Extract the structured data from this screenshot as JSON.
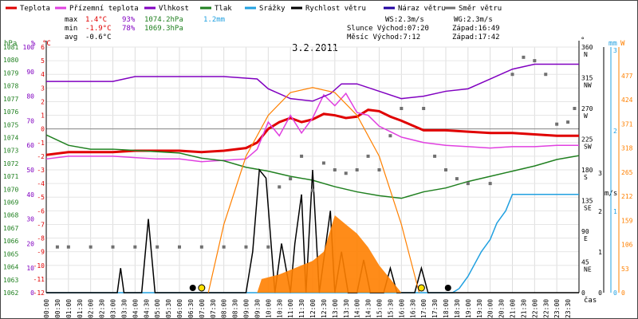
{
  "legend": [
    {
      "label": "Teplota",
      "color": "#e00000"
    },
    {
      "label": "Přízemní teplota",
      "color": "#e040e0"
    },
    {
      "label": "Vlhkost",
      "color": "#8000c0"
    },
    {
      "label": "Tlak",
      "color": "#208020"
    },
    {
      "label": "Srážky",
      "color": "#20a0e0"
    },
    {
      "label": "Rychlost větru",
      "color": "#000000"
    },
    {
      "label": "Náraz větru",
      "color": "#2000a0"
    },
    {
      "label": "Směr větru",
      "color": "#707070"
    }
  ],
  "stats": {
    "max_label": "max",
    "max_temp": "1.4°C",
    "max_hum": "93%",
    "max_press": "1074.2hPa",
    "max_rain": "1.2mm",
    "min_label": "min",
    "min_temp": "-1.9°C",
    "min_hum": "78%",
    "min_press": "1069.3hPa",
    "avg_label": "avg",
    "avg_temp": "-0.6°C"
  },
  "wind_info": {
    "ws": "WS:2.3m/s",
    "wg": "WG:2.3m/s"
  },
  "sun_info": {
    "sunrise": "Slunce Východ:07:20",
    "sunset": "Západ:16:49"
  },
  "moon_info": {
    "moonrise": "Měsíc  Východ:7:12",
    "moonset": "Západ:17:42"
  },
  "date": "3.2.2011",
  "axis_titles": {
    "hpa": "hPa",
    "pct": "%",
    "degc": "°C",
    "deg": "°",
    "mm": "mm",
    "ms": "m/s",
    "w": "W",
    "cas": "čas"
  },
  "chart_data": {
    "type": "line",
    "title": "3.2.2011",
    "x_unit": "hour of day",
    "xlim": [
      0,
      24
    ],
    "x_ticks": [
      "00:00",
      "00:30",
      "01:00",
      "01:30",
      "02:00",
      "02:30",
      "03:00",
      "03:30",
      "04:00",
      "04:30",
      "05:00",
      "05:30",
      "06:00",
      "06:30",
      "07:00",
      "07:30",
      "08:00",
      "08:30",
      "09:00",
      "09:30",
      "10:00",
      "10:30",
      "11:00",
      "11:30",
      "12:00",
      "12:30",
      "13:00",
      "13:30",
      "14:00",
      "14:30",
      "15:00",
      "15:30",
      "16:00",
      "16:30",
      "17:00",
      "17:30",
      "18:00",
      "18:30",
      "19:00",
      "19:30",
      "20:00",
      "20:30",
      "21:00",
      "21:30",
      "22:00",
      "22:30",
      "23:00",
      "23:30"
    ],
    "axes": {
      "pressure_hpa": {
        "ticks": [
          "1062",
          "1063",
          "1064",
          "1065",
          "1066",
          "1067",
          "1068",
          "1069",
          "1070",
          "1071",
          "1072",
          "1073",
          "1074",
          "1075",
          "1076",
          "1077",
          "1078",
          "1079",
          "1080",
          "1081"
        ],
        "range": [
          1062,
          1081
        ]
      },
      "humidity_pct": {
        "ticks": [
          "0",
          "10",
          "20",
          "30",
          "40",
          "50",
          "60",
          "70",
          "80",
          "90",
          "100"
        ],
        "range": [
          0,
          100
        ]
      },
      "temperature_c": {
        "ticks": [
          "6",
          "5",
          "4",
          "3",
          "2",
          "1",
          "0",
          "-1",
          "-2",
          "-3",
          "-4",
          "-5",
          "-6",
          "-7",
          "-8",
          "-9",
          "-10",
          "-11",
          "-12"
        ],
        "range": [
          -12,
          6
        ]
      },
      "wind_dir_deg": {
        "ticks": [
          "360",
          "315",
          "270",
          "225",
          "180",
          "135",
          "90",
          "45",
          "0"
        ],
        "range": [
          0,
          360
        ]
      },
      "wind_dir_names": [
        "N",
        "NW",
        "W",
        "SW",
        "S",
        "SE",
        "E",
        "NE"
      ],
      "rain_mm": {
        "ticks": [
          "3",
          "2",
          "1",
          "0"
        ],
        "range": [
          0,
          3
        ]
      },
      "wind_ms": {
        "ticks": [
          "3",
          "2",
          "1",
          "0"
        ],
        "range": [
          0,
          3
        ]
      },
      "solar_w": {
        "ticks": [
          "477",
          "424",
          "371",
          "318",
          "265",
          "212",
          "159",
          "106",
          "53",
          "0"
        ],
        "range": [
          0,
          477
        ]
      }
    },
    "series": [
      {
        "name": "Teplota",
        "axis": "temperature_c",
        "color": "#e00000",
        "points": [
          [
            0,
            -1.9
          ],
          [
            1,
            -1.7
          ],
          [
            2,
            -1.7
          ],
          [
            3,
            -1.7
          ],
          [
            4,
            -1.6
          ],
          [
            5,
            -1.6
          ],
          [
            6,
            -1.6
          ],
          [
            7,
            -1.7
          ],
          [
            8,
            -1.6
          ],
          [
            9,
            -1.4
          ],
          [
            9.5,
            -1.0
          ],
          [
            10,
            0.0
          ],
          [
            10.5,
            0.5
          ],
          [
            11,
            0.8
          ],
          [
            11.5,
            0.5
          ],
          [
            12,
            0.7
          ],
          [
            12.5,
            1.1
          ],
          [
            13,
            1.0
          ],
          [
            13.5,
            0.8
          ],
          [
            14,
            0.9
          ],
          [
            14.5,
            1.4
          ],
          [
            15,
            1.3
          ],
          [
            15.5,
            0.9
          ],
          [
            16,
            0.6
          ],
          [
            17,
            -0.1
          ],
          [
            18,
            -0.1
          ],
          [
            19,
            -0.2
          ],
          [
            20,
            -0.3
          ],
          [
            21,
            -0.3
          ],
          [
            22,
            -0.4
          ],
          [
            23,
            -0.5
          ],
          [
            24,
            -0.5
          ]
        ]
      },
      {
        "name": "Přízemní teplota",
        "axis": "temperature_c",
        "color": "#e040e0",
        "points": [
          [
            0,
            -2.2
          ],
          [
            1,
            -2.0
          ],
          [
            2,
            -2.0
          ],
          [
            3,
            -2.0
          ],
          [
            4,
            -2.1
          ],
          [
            5,
            -2.2
          ],
          [
            6,
            -2.2
          ],
          [
            7,
            -2.4
          ],
          [
            8,
            -2.3
          ],
          [
            9,
            -2.2
          ],
          [
            9.5,
            -1.5
          ],
          [
            10,
            0.5
          ],
          [
            10.5,
            -0.5
          ],
          [
            11,
            1.0
          ],
          [
            11.5,
            -0.3
          ],
          [
            12,
            0.8
          ],
          [
            12.5,
            2.5
          ],
          [
            13,
            1.7
          ],
          [
            13.5,
            2.6
          ],
          [
            14,
            1.2
          ],
          [
            14.5,
            1.0
          ],
          [
            15,
            0.2
          ],
          [
            15.5,
            -0.2
          ],
          [
            16,
            -0.6
          ],
          [
            17,
            -1.0
          ],
          [
            18,
            -1.2
          ],
          [
            19,
            -1.3
          ],
          [
            20,
            -1.4
          ],
          [
            21,
            -1.3
          ],
          [
            22,
            -1.3
          ],
          [
            23,
            -1.2
          ],
          [
            24,
            -1.2
          ]
        ]
      },
      {
        "name": "Vlhkost",
        "axis": "humidity_pct",
        "color": "#8000c0",
        "points": [
          [
            0,
            86
          ],
          [
            3,
            86
          ],
          [
            4,
            88
          ],
          [
            8,
            88
          ],
          [
            9.5,
            87
          ],
          [
            10,
            83
          ],
          [
            11,
            79
          ],
          [
            12,
            78
          ],
          [
            12.8,
            81
          ],
          [
            13.3,
            85
          ],
          [
            14,
            85
          ],
          [
            15,
            82
          ],
          [
            16,
            79
          ],
          [
            17,
            80
          ],
          [
            18,
            82
          ],
          [
            19,
            83
          ],
          [
            20,
            87
          ],
          [
            21,
            91
          ],
          [
            22,
            93
          ],
          [
            24,
            93
          ]
        ]
      },
      {
        "name": "Tlak",
        "axis": "pressure_hpa",
        "color": "#208020",
        "points": [
          [
            0,
            1074.2
          ],
          [
            1,
            1073.4
          ],
          [
            2,
            1073.1
          ],
          [
            3,
            1073.1
          ],
          [
            4,
            1073.0
          ],
          [
            5,
            1072.9
          ],
          [
            6,
            1072.8
          ],
          [
            7,
            1072.4
          ],
          [
            8,
            1072.2
          ],
          [
            9,
            1071.7
          ],
          [
            10,
            1071.4
          ],
          [
            11,
            1071.0
          ],
          [
            12,
            1070.7
          ],
          [
            13,
            1070.2
          ],
          [
            14,
            1069.8
          ],
          [
            15,
            1069.5
          ],
          [
            16,
            1069.3
          ],
          [
            17,
            1069.8
          ],
          [
            18,
            1070.1
          ],
          [
            19,
            1070.6
          ],
          [
            20,
            1071.0
          ],
          [
            21,
            1071.4
          ],
          [
            22,
            1071.8
          ],
          [
            23,
            1072.3
          ],
          [
            24,
            1072.6
          ]
        ]
      },
      {
        "name": "Srážky",
        "axis": "rain_mm",
        "color": "#20a0e0",
        "points": [
          [
            0,
            0
          ],
          [
            18.3,
            0
          ],
          [
            18.6,
            0.05
          ],
          [
            19,
            0.2
          ],
          [
            19.3,
            0.35
          ],
          [
            19.6,
            0.5
          ],
          [
            20,
            0.65
          ],
          [
            20.3,
            0.85
          ],
          [
            20.7,
            1.0
          ],
          [
            21,
            1.2
          ],
          [
            24,
            1.2
          ]
        ]
      },
      {
        "name": "Rychlost větru",
        "axis": "wind_ms",
        "color": "#000000",
        "points": [
          [
            0,
            0
          ],
          [
            3.2,
            0
          ],
          [
            3.35,
            0.3
          ],
          [
            3.5,
            0
          ],
          [
            4.3,
            0
          ],
          [
            4.6,
            0.9
          ],
          [
            4.9,
            0
          ],
          [
            9.0,
            0
          ],
          [
            9.3,
            0.5
          ],
          [
            9.6,
            1.5
          ],
          [
            9.9,
            1.4
          ],
          [
            10.3,
            0
          ],
          [
            10.6,
            0.6
          ],
          [
            11.0,
            0
          ],
          [
            11.2,
            0.6
          ],
          [
            11.5,
            1.2
          ],
          [
            11.7,
            0
          ],
          [
            12.0,
            1.5
          ],
          [
            12.3,
            0
          ],
          [
            12.8,
            1.0
          ],
          [
            13.0,
            0
          ],
          [
            13.3,
            0.5
          ],
          [
            13.6,
            0
          ],
          [
            14.0,
            0
          ],
          [
            14.3,
            0.4
          ],
          [
            14.6,
            0
          ],
          [
            15.2,
            0
          ],
          [
            15.5,
            0.3
          ],
          [
            15.8,
            0
          ],
          [
            16.6,
            0
          ],
          [
            16.9,
            0.3
          ],
          [
            17.2,
            0
          ],
          [
            24,
            0
          ]
        ]
      },
      {
        "name": "Slunečné záření",
        "axis": "solar_w",
        "color": "#ff8000",
        "area": true,
        "points": [
          [
            9.5,
            0
          ],
          [
            9.7,
            30
          ],
          [
            10.5,
            40
          ],
          [
            11.0,
            50
          ],
          [
            11.5,
            60
          ],
          [
            12.0,
            70
          ],
          [
            12.5,
            90
          ],
          [
            13.0,
            170
          ],
          [
            13.5,
            150
          ],
          [
            14.0,
            130
          ],
          [
            14.5,
            100
          ],
          [
            15.0,
            60
          ],
          [
            15.5,
            30
          ],
          [
            16.0,
            0
          ]
        ]
      },
      {
        "name": "Teoretické záření",
        "axis": "solar_w",
        "color": "#ff8000",
        "curve": true,
        "points": [
          [
            7.3,
            0
          ],
          [
            8,
            150
          ],
          [
            9,
            300
          ],
          [
            10,
            390
          ],
          [
            11,
            440
          ],
          [
            12,
            451
          ],
          [
            13,
            440
          ],
          [
            14,
            390
          ],
          [
            15,
            300
          ],
          [
            16,
            150
          ],
          [
            16.8,
            0
          ]
        ]
      }
    ],
    "wind_direction_points": [
      [
        0.5,
        67
      ],
      [
        1,
        67
      ],
      [
        2,
        67
      ],
      [
        3,
        67
      ],
      [
        4,
        67
      ],
      [
        5,
        67
      ],
      [
        6,
        67
      ],
      [
        7,
        67
      ],
      [
        8,
        67
      ],
      [
        9,
        67
      ],
      [
        10,
        67
      ],
      [
        10.5,
        155
      ],
      [
        11,
        167
      ],
      [
        11.5,
        200
      ],
      [
        12,
        150
      ],
      [
        12.5,
        190
      ],
      [
        13,
        180
      ],
      [
        13.5,
        175
      ],
      [
        14,
        180
      ],
      [
        14.5,
        200
      ],
      [
        15,
        180
      ],
      [
        15.5,
        230
      ],
      [
        16,
        270
      ],
      [
        17,
        270
      ],
      [
        17.5,
        200
      ],
      [
        18,
        180
      ],
      [
        18.5,
        167
      ],
      [
        19,
        160
      ],
      [
        20,
        160
      ],
      [
        21,
        320
      ],
      [
        21.5,
        345
      ],
      [
        22,
        340
      ],
      [
        22.5,
        320
      ],
      [
        23,
        247
      ],
      [
        23.5,
        250
      ],
      [
        23.8,
        270
      ]
    ],
    "markers": {
      "black_dots": [
        6.6,
        18.1
      ],
      "yellow_dots": [
        7.0,
        16.9
      ]
    }
  }
}
